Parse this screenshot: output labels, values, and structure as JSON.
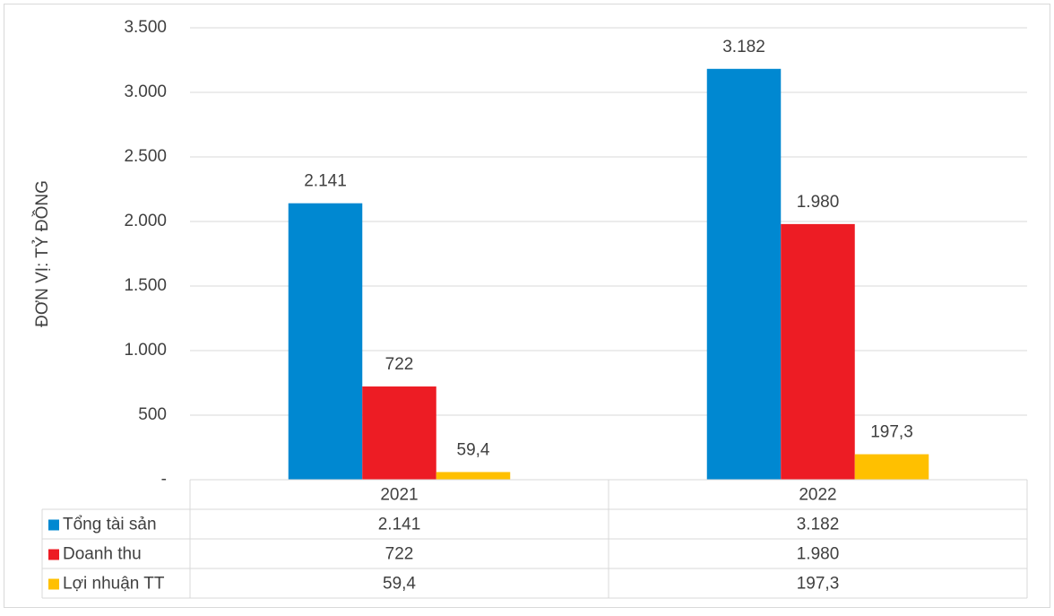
{
  "chart_data": {
    "type": "bar",
    "y_label": "ĐƠN VỊ: TỶ ĐỒNG",
    "categories": [
      "2021",
      "2022"
    ],
    "series": [
      {
        "name": "Tổng tài sản",
        "color": "#0088d1",
        "values": [
          2141,
          3182
        ],
        "value_labels": [
          "2.141",
          "3.182"
        ]
      },
      {
        "name": "Doanh thu",
        "color": "#ed1c24",
        "values": [
          722,
          1980
        ],
        "value_labels": [
          "722",
          "1.980"
        ]
      },
      {
        "name": "Lợi nhuận TT",
        "color": "#ffc000",
        "values": [
          59.4,
          197.3
        ],
        "value_labels": [
          "59,4",
          "197,3"
        ]
      }
    ],
    "ylim": [
      0,
      3500
    ],
    "yticks": [
      {
        "value": 0,
        "label": "-"
      },
      500,
      {
        "value": 1000,
        "label": "1.000"
      },
      {
        "value": 1500,
        "label": "1.500"
      },
      {
        "value": 2000,
        "label": "2.000"
      },
      {
        "value": 2500,
        "label": "2.500"
      },
      {
        "value": 3000,
        "label": "3.000"
      },
      {
        "value": 3500,
        "label": "3.500"
      }
    ],
    "grid": true,
    "data_table": true
  }
}
